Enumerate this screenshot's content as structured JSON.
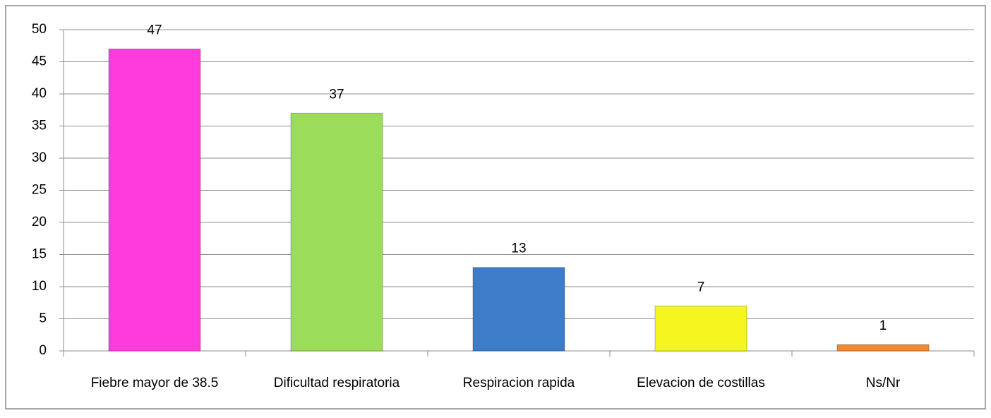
{
  "chart_data": {
    "type": "bar",
    "categories": [
      "Fiebre mayor de 38.5",
      "Dificultad respiratoria",
      "Respiracion rapida",
      "Elevacion de costillas",
      "Ns/Nr"
    ],
    "values": [
      47,
      37,
      13,
      7,
      1
    ],
    "colors": [
      "#ff3bdc",
      "#9bdc5a",
      "#3d7cc9",
      "#f5f520",
      "#f08a30"
    ],
    "ylim": [
      0,
      50
    ],
    "yticks": [
      0,
      5,
      10,
      15,
      20,
      25,
      30,
      35,
      40,
      45,
      50
    ],
    "grid": true
  }
}
